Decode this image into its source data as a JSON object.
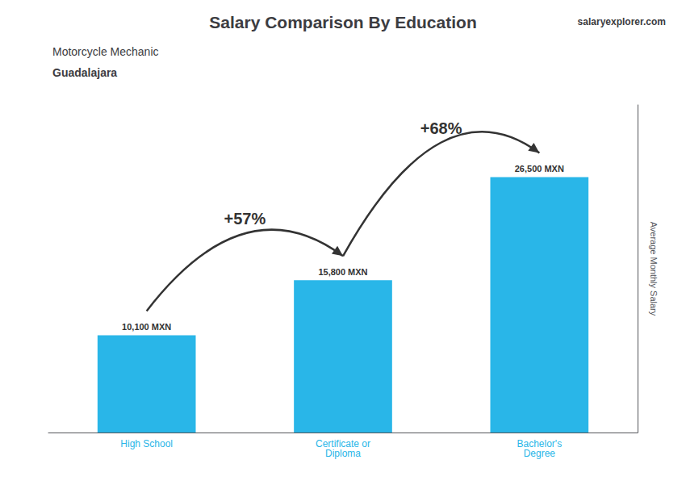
{
  "chart_data": {
    "type": "bar",
    "title": "Salary Comparison By Education",
    "subtitle": [
      "Motorcycle Mechanic",
      "Guadalajara"
    ],
    "brand": "salaryexplorer.com",
    "ylabel": "Average Monthly Salary",
    "categories": [
      "High School",
      "Certificate or\nDiploma",
      "Bachelor's\nDegree"
    ],
    "values": [
      10100,
      15800,
      26500
    ],
    "value_labels": [
      "10,100 MXN",
      "15,800 MXN",
      "26,500 MXN"
    ],
    "data_labels": true,
    "color": "#29b6e8",
    "annotations": [
      "+57%",
      "+68%"
    ],
    "ylim": [
      0,
      34000
    ],
    "grid": false,
    "tick_labels": "x"
  }
}
